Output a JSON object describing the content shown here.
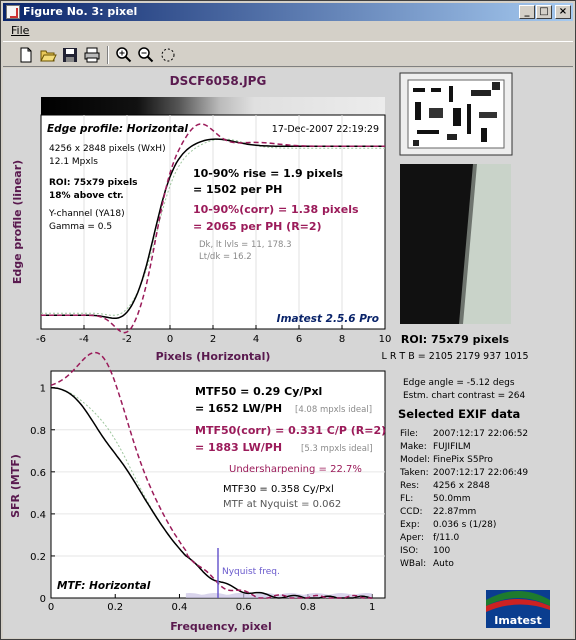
{
  "window": {
    "title": "Figure No. 3: pixel",
    "minimize": "_",
    "maximize": "□",
    "close": "×"
  },
  "menu": {
    "file": "File"
  },
  "toolbar": {
    "icons": [
      "new-file-icon",
      "open-folder-icon",
      "save-icon",
      "print-icon",
      "zoom-in-icon",
      "zoom-out-icon",
      "rotate-icon"
    ]
  },
  "figure": {
    "filename": "DSCF6058.JPG",
    "edge_panel": {
      "title": "Edge profile: Horizontal",
      "date": "17-Dec-2007 22:19:29",
      "ylabel": "Edge profile (linear)",
      "xlabel": "Pixels (Horizontal)",
      "xticks": [
        "-6",
        "-4",
        "-2",
        "0",
        "2",
        "4",
        "6",
        "8",
        "10"
      ],
      "info": [
        "4256 x 2848 pixels (WxH)",
        "12.1 Mpxls"
      ],
      "roi": [
        "ROI: 75x79 pixels",
        "18% above ctr."
      ],
      "channel": [
        "Y-channel  (YA18)",
        "Gamma = 0.5"
      ],
      "rise": [
        "10-90% rise = 1.9 pixels",
        "= 1502 per PH"
      ],
      "rise_corr": [
        "10-90%(corr) = 1.38 pixels",
        "= 2065 per PH  (R=2)"
      ],
      "dk": [
        "Dk, lt lvls = 11, 178.3",
        "Lt/dk = 16.2"
      ],
      "brand": "Imatest 2.5.6 Pro"
    },
    "mtf_panel": {
      "title": "MTF: Horizontal",
      "ylabel": "SFR (MTF)",
      "xlabel": "Frequency, pixel",
      "xticks": [
        "0",
        "0.2",
        "0.4",
        "0.6",
        "0.8",
        "1"
      ],
      "yticks": [
        "0",
        "0.2",
        "0.4",
        "0.6",
        "0.8",
        "1"
      ],
      "mtf50": [
        "MTF50 = 0.29 Cy/Pxl",
        "= 1652 LW/PH"
      ],
      "mtf50_ideal": "[4.08 mpxls ideal]",
      "mtf50_corr": [
        "MTF50(corr) = 0.331 C/P  (R=2)",
        "= 1883 LW/PH"
      ],
      "mtf50_corr_ideal": "[5.3 mpxls ideal]",
      "undersharpening": "Undersharpening = 22.7%",
      "mtf30": "MTF30 = 0.358 Cy/Pxl",
      "nyquist_value": "MTF at Nyquist = 0.062",
      "nyquist_label": "Nyquist freq."
    },
    "side": {
      "roi": "ROI: 75x79 pixels",
      "lrtb": "L R  T B = 2105 2179  937 1015",
      "edge_angle": "Edge angle = -5.12 degs",
      "contrast": "Estm. chart contrast = 264",
      "exif_title": "Selected EXIF data",
      "exif": [
        [
          "File:",
          "2007:12:17 22:06:52"
        ],
        [
          "Make:",
          "FUJIFILM"
        ],
        [
          "Model:",
          "FinePix S5Pro"
        ],
        [
          "Taken:",
          "2007:12:17 22:06:49"
        ],
        [
          "Res:",
          "4256 x 2848"
        ],
        [
          "FL:",
          "50.0mm"
        ],
        [
          "CCD:",
          "22.87mm"
        ],
        [
          "Exp:",
          "0.036 s  (1/28)"
        ],
        [
          "Aper:",
          "f/11.0"
        ],
        [
          "ISO:",
          "100"
        ],
        [
          "WBal:",
          "Auto"
        ]
      ],
      "logo": "Imatest"
    },
    "colors": {
      "title": "#5a1a4f",
      "corr": "#9b1b5a",
      "gray": "#8a8a8a",
      "nyquist": "#6a5acd"
    }
  }
}
